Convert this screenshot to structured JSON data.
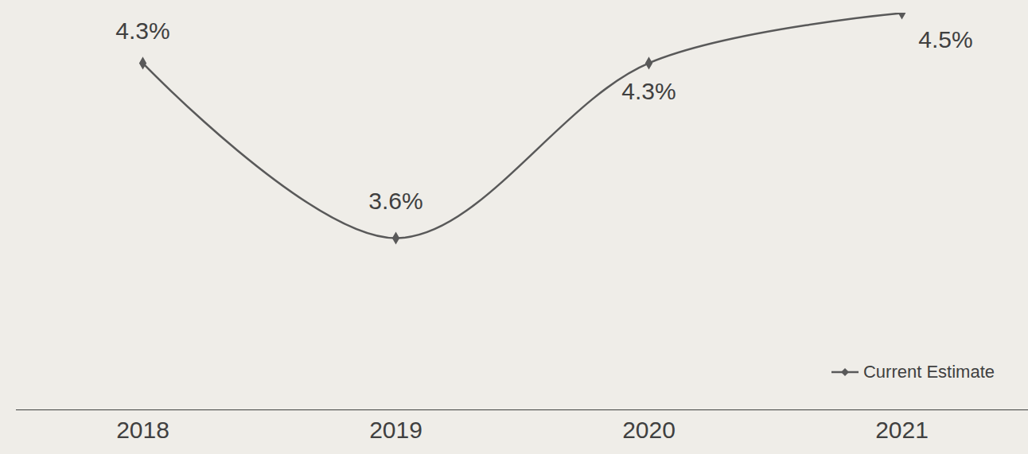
{
  "chart_data": {
    "type": "line",
    "categories": [
      "2018",
      "2019",
      "2020",
      "2021"
    ],
    "series": [
      {
        "name": "Current Estimate",
        "color": "#595959",
        "values": [
          4.3,
          3.6,
          4.3,
          4.5
        ],
        "value_labels": [
          "4.3%",
          "3.6%",
          "4.3%",
          "4.5%"
        ],
        "marker": "diamond",
        "line_style": "solid"
      }
    ],
    "data_labels": true,
    "tick_labels": "x",
    "legend": "bottom-right",
    "grid": false
  }
}
